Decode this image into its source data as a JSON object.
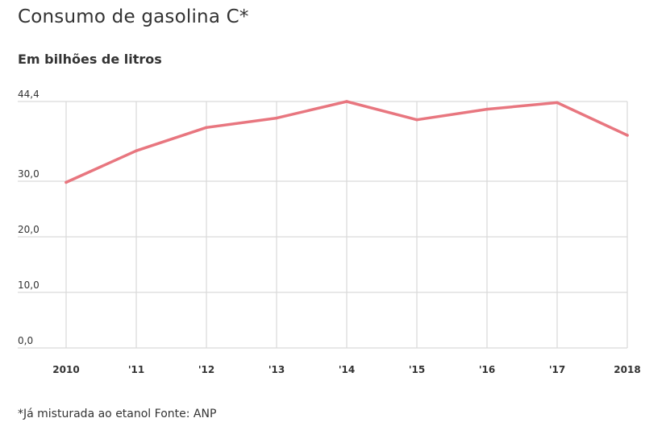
{
  "header": {
    "title": "Consumo de gasolina C*",
    "subtitle": "Em bilhões de litros"
  },
  "footer": {
    "note": "*Já misturada ao etanol Fonte: ANP"
  },
  "colors": {
    "line": "#e8767f",
    "grid": "#d9d9d9",
    "text": "#333333"
  },
  "chart_data": {
    "type": "line",
    "title": "Consumo de gasolina C*",
    "subtitle": "Em bilhões de litros",
    "x": [
      "2010",
      "2011",
      "2012",
      "2013",
      "2014",
      "2015",
      "2016",
      "2017",
      "2018"
    ],
    "x_tick_labels": [
      "2010",
      "'11",
      "'12",
      "'13",
      "'14",
      "'15",
      "'16",
      "'17",
      "2018"
    ],
    "y_tick_labels": [
      "0,0",
      "10,0",
      "20,0",
      "30,0",
      "44,4"
    ],
    "y_ticks": [
      0,
      10,
      20,
      30,
      44.4
    ],
    "ylim": [
      0,
      44.4
    ],
    "series": [
      {
        "values": [
          29.8,
          35.5,
          39.7,
          41.4,
          44.4,
          41.1,
          43.0,
          44.2,
          38.3
        ]
      }
    ],
    "grid": true,
    "legend": "none"
  }
}
